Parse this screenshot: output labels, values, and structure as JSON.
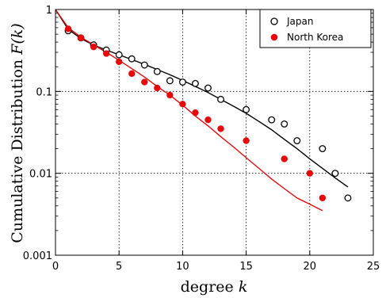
{
  "chart_data": {
    "type": "scatter",
    "xlabel_text": "degree ",
    "xlabel_var": "k",
    "ylabel_text": "Cumulative Distribution ",
    "ylabel_var": "F(k)",
    "xlim": [
      0,
      25
    ],
    "ylim": [
      0.001,
      1
    ],
    "yscale": "log",
    "grid": true,
    "legend_position": "top-right",
    "x_ticks": [
      0,
      5,
      10,
      15,
      20,
      25
    ],
    "y_ticks": [
      {
        "value": 0.001,
        "label": "0.001"
      },
      {
        "value": 0.01,
        "label": "0.01"
      },
      {
        "value": 0.1,
        "label": "0.1"
      },
      {
        "value": 1,
        "label": "1"
      }
    ],
    "series": [
      {
        "name": "Japan",
        "marker": "open-circle",
        "color": "#000000",
        "points": [
          [
            1,
            0.55
          ],
          [
            2,
            0.45
          ],
          [
            3,
            0.37
          ],
          [
            4,
            0.32
          ],
          [
            5,
            0.28
          ],
          [
            6,
            0.25
          ],
          [
            7,
            0.21
          ],
          [
            8,
            0.175
          ],
          [
            9,
            0.135
          ],
          [
            10,
            0.13
          ],
          [
            11,
            0.125
          ],
          [
            12,
            0.11
          ],
          [
            13,
            0.08
          ],
          [
            15,
            0.06
          ],
          [
            17,
            0.045
          ],
          [
            18,
            0.04
          ],
          [
            19,
            0.025
          ],
          [
            21,
            0.02
          ],
          [
            22,
            0.01
          ],
          [
            23,
            0.005
          ]
        ],
        "fit": [
          [
            0,
            1.0
          ],
          [
            1,
            0.575
          ],
          [
            2,
            0.442
          ],
          [
            3,
            0.368
          ],
          [
            4,
            0.32
          ],
          [
            5,
            0.28
          ],
          [
            6,
            0.245
          ],
          [
            7,
            0.214
          ],
          [
            8,
            0.185
          ],
          [
            9,
            0.16
          ],
          [
            10,
            0.136
          ],
          [
            11,
            0.115
          ],
          [
            12,
            0.097
          ],
          [
            13,
            0.08
          ],
          [
            14,
            0.066
          ],
          [
            15,
            0.054
          ],
          [
            16,
            0.043
          ],
          [
            17,
            0.034
          ],
          [
            18,
            0.026
          ],
          [
            19,
            0.02
          ],
          [
            20,
            0.015
          ],
          [
            21,
            0.0115
          ],
          [
            22,
            0.0088
          ],
          [
            23,
            0.0068
          ]
        ]
      },
      {
        "name": "North Korea",
        "marker": "filled-circle",
        "color": "#e8080c",
        "points": [
          [
            1,
            0.58
          ],
          [
            2,
            0.45
          ],
          [
            3,
            0.35
          ],
          [
            4,
            0.29
          ],
          [
            5,
            0.23
          ],
          [
            6,
            0.165
          ],
          [
            7,
            0.13
          ],
          [
            8,
            0.11
          ],
          [
            9,
            0.09
          ],
          [
            10,
            0.07
          ],
          [
            11,
            0.055
          ],
          [
            12,
            0.045
          ],
          [
            13,
            0.035
          ],
          [
            15,
            0.025
          ],
          [
            18,
            0.015
          ],
          [
            20,
            0.01
          ],
          [
            21,
            0.005
          ]
        ],
        "fit": [
          [
            0,
            1.0
          ],
          [
            1,
            0.6
          ],
          [
            2,
            0.46
          ],
          [
            3,
            0.37
          ],
          [
            4,
            0.3
          ],
          [
            5,
            0.24
          ],
          [
            6,
            0.19
          ],
          [
            7,
            0.15
          ],
          [
            8,
            0.115
          ],
          [
            9,
            0.09
          ],
          [
            10,
            0.068
          ],
          [
            11,
            0.05
          ],
          [
            12,
            0.038
          ],
          [
            13,
            0.028
          ],
          [
            14,
            0.021
          ],
          [
            15,
            0.0155
          ],
          [
            16,
            0.0115
          ],
          [
            17,
            0.0085
          ],
          [
            18,
            0.0065
          ],
          [
            19,
            0.005
          ],
          [
            20,
            0.0042
          ],
          [
            21,
            0.0035
          ]
        ]
      }
    ]
  }
}
